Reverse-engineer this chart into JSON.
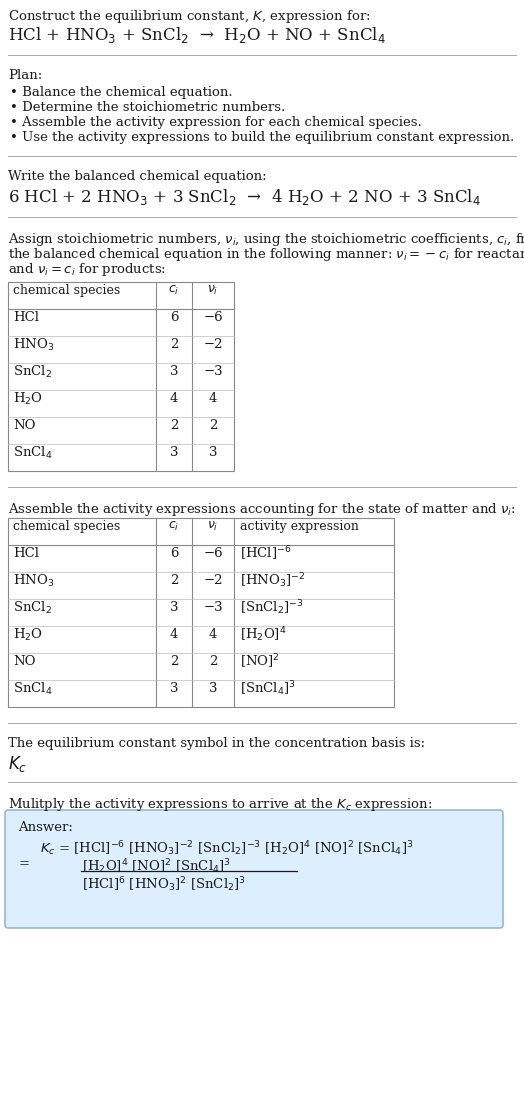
{
  "title_line1": "Construct the equilibrium constant, $K$, expression for:",
  "title_line2": "HCl + HNO$_3$ + SnCl$_2$  →  H$_2$O + NO + SnCl$_4$",
  "plan_header": "Plan:",
  "plan_items": [
    "• Balance the chemical equation.",
    "• Determine the stoichiometric numbers.",
    "• Assemble the activity expression for each chemical species.",
    "• Use the activity expressions to build the equilibrium constant expression."
  ],
  "balanced_header": "Write the balanced chemical equation:",
  "balanced_eq": "6 HCl + 2 HNO$_3$ + 3 SnCl$_2$  →  4 H$_2$O + 2 NO + 3 SnCl$_4$",
  "stoich_header_lines": [
    "Assign stoichiometric numbers, $\\nu_i$, using the stoichiometric coefficients, $c_i$, from",
    "the balanced chemical equation in the following manner: $\\nu_i = -c_i$ for reactants",
    "and $\\nu_i = c_i$ for products:"
  ],
  "table1_cols": [
    "chemical species",
    "$c_i$",
    "$\\nu_i$"
  ],
  "table1_rows": [
    [
      "HCl",
      "6",
      "−6"
    ],
    [
      "HNO$_3$",
      "2",
      "−2"
    ],
    [
      "SnCl$_2$",
      "3",
      "−3"
    ],
    [
      "H$_2$O",
      "4",
      "4"
    ],
    [
      "NO",
      "2",
      "2"
    ],
    [
      "SnCl$_4$",
      "3",
      "3"
    ]
  ],
  "activity_header": "Assemble the activity expressions accounting for the state of matter and $\\nu_i$:",
  "table2_cols": [
    "chemical species",
    "$c_i$",
    "$\\nu_i$",
    "activity expression"
  ],
  "table2_rows": [
    [
      "HCl",
      "6",
      "−6",
      "[HCl]$^{-6}$"
    ],
    [
      "HNO$_3$",
      "2",
      "−2",
      "[HNO$_3$]$^{-2}$"
    ],
    [
      "SnCl$_2$",
      "3",
      "−3",
      "[SnCl$_2$]$^{-3}$"
    ],
    [
      "H$_2$O",
      "4",
      "4",
      "[H$_2$O]$^4$"
    ],
    [
      "NO",
      "2",
      "2",
      "[NO]$^2$"
    ],
    [
      "SnCl$_4$",
      "3",
      "3",
      "[SnCl$_4$]$^3$"
    ]
  ],
  "kc_header": "The equilibrium constant symbol in the concentration basis is:",
  "kc_symbol": "$K_c$",
  "multiply_header": "Mulitply the activity expressions to arrive at the $K_c$ expression:",
  "answer_label": "Answer:",
  "answer_line1": "$K_c$ = [HCl]$^{-6}$ [HNO$_3$]$^{-2}$ [SnCl$_2$]$^{-3}$ [H$_2$O]$^4$ [NO]$^2$ [SnCl$_4$]$^3$",
  "answer_eq_lhs": "     = ",
  "answer_line2_num": "[H$_2$O]$^4$ [NO]$^2$ [SnCl$_4$]$^3$",
  "answer_line2_den": "[HCl]$^6$ [HNO$_3$]$^2$ [SnCl$_2$]$^3$",
  "bg_color": "#ffffff",
  "text_color": "#1a1a1a",
  "sep_color": "#aaaaaa",
  "table_border_color": "#888888",
  "table_inner_color": "#bbbbbb",
  "answer_box_facecolor": "#ddeeff",
  "answer_box_edgecolor": "#88aacc",
  "font_size": 9.5,
  "title_font_size": 9.5,
  "eq_font_size": 11.5,
  "plan_font_size": 9.5
}
